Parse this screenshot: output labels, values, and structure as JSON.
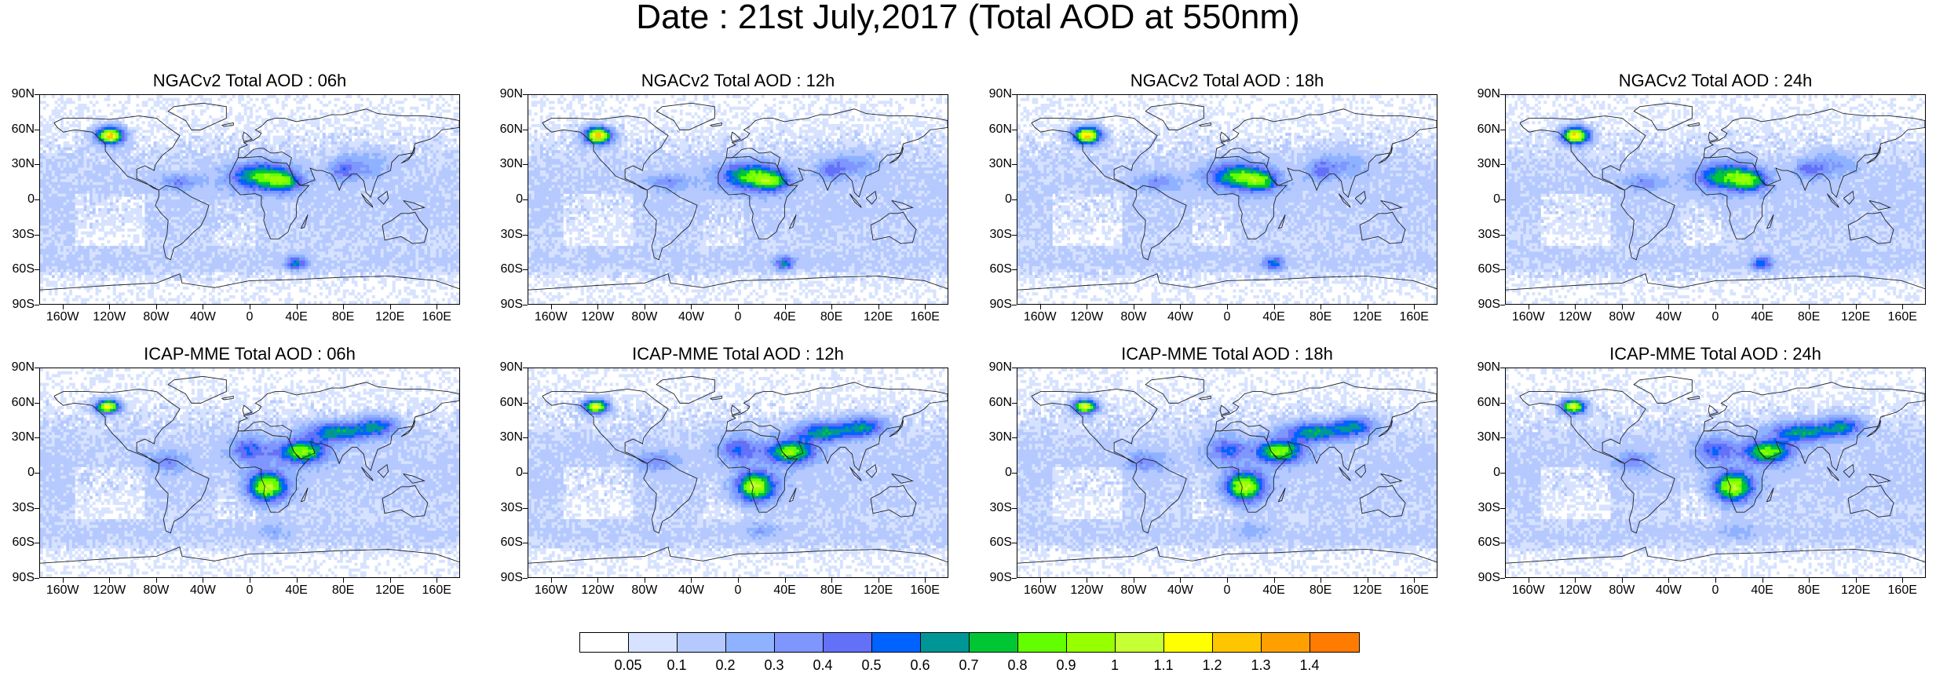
{
  "title": "Date : 21st July,2017 (Total AOD at 550nm)",
  "y_ticks": [
    "90N",
    "60N",
    "30N",
    "0",
    "30S",
    "60S",
    "90S"
  ],
  "x_ticks": [
    "160W",
    "120W",
    "80W",
    "40W",
    "0",
    "40E",
    "80E",
    "120E",
    "160E"
  ],
  "panels": [
    {
      "title": "NGACv2 Total AOD : 06h",
      "model": "NGACv2",
      "hour": "06h"
    },
    {
      "title": "NGACv2 Total AOD : 12h",
      "model": "NGACv2",
      "hour": "12h"
    },
    {
      "title": "NGACv2 Total AOD : 18h",
      "model": "NGACv2",
      "hour": "18h"
    },
    {
      "title": "NGACv2 Total AOD : 24h",
      "model": "NGACv2",
      "hour": "24h"
    },
    {
      "title": "ICAP-MME Total AOD : 06h",
      "model": "ICAP-MME",
      "hour": "06h"
    },
    {
      "title": "ICAP-MME Total AOD : 12h",
      "model": "ICAP-MME",
      "hour": "12h"
    },
    {
      "title": "ICAP-MME Total AOD : 18h",
      "model": "ICAP-MME",
      "hour": "18h"
    },
    {
      "title": "ICAP-MME Total AOD : 24h",
      "model": "ICAP-MME",
      "hour": "24h"
    }
  ],
  "colorbar": {
    "labels": [
      "0.05",
      "0.1",
      "0.2",
      "0.3",
      "0.4",
      "0.5",
      "0.6",
      "0.7",
      "0.8",
      "0.9",
      "1",
      "1.1",
      "1.2",
      "1.3",
      "1.4"
    ],
    "colors": [
      "#ffffff",
      "#d6e2ff",
      "#b5c9ff",
      "#8eb2ff",
      "#7f96ff",
      "#6370f8",
      "#0063ff",
      "#009696",
      "#00c633",
      "#63ff00",
      "#96ff00",
      "#c6ff33",
      "#ffff00",
      "#ffc600",
      "#ffa000",
      "#ff7c00",
      "#ff1900"
    ]
  }
}
